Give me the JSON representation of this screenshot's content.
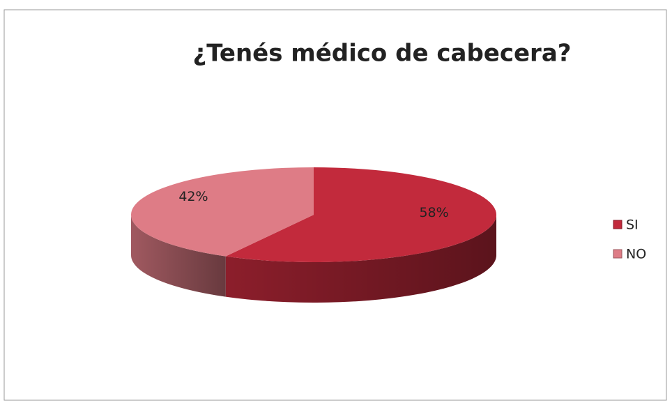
{
  "chart_data": {
    "type": "pie",
    "title": "¿Tenés médico de cabecera?",
    "categories": [
      "SI",
      "NO"
    ],
    "values": [
      58,
      42
    ],
    "value_labels": [
      "58%",
      "42%"
    ],
    "colors": [
      "#c22a3c",
      "#de7c86"
    ],
    "legend": "right"
  }
}
